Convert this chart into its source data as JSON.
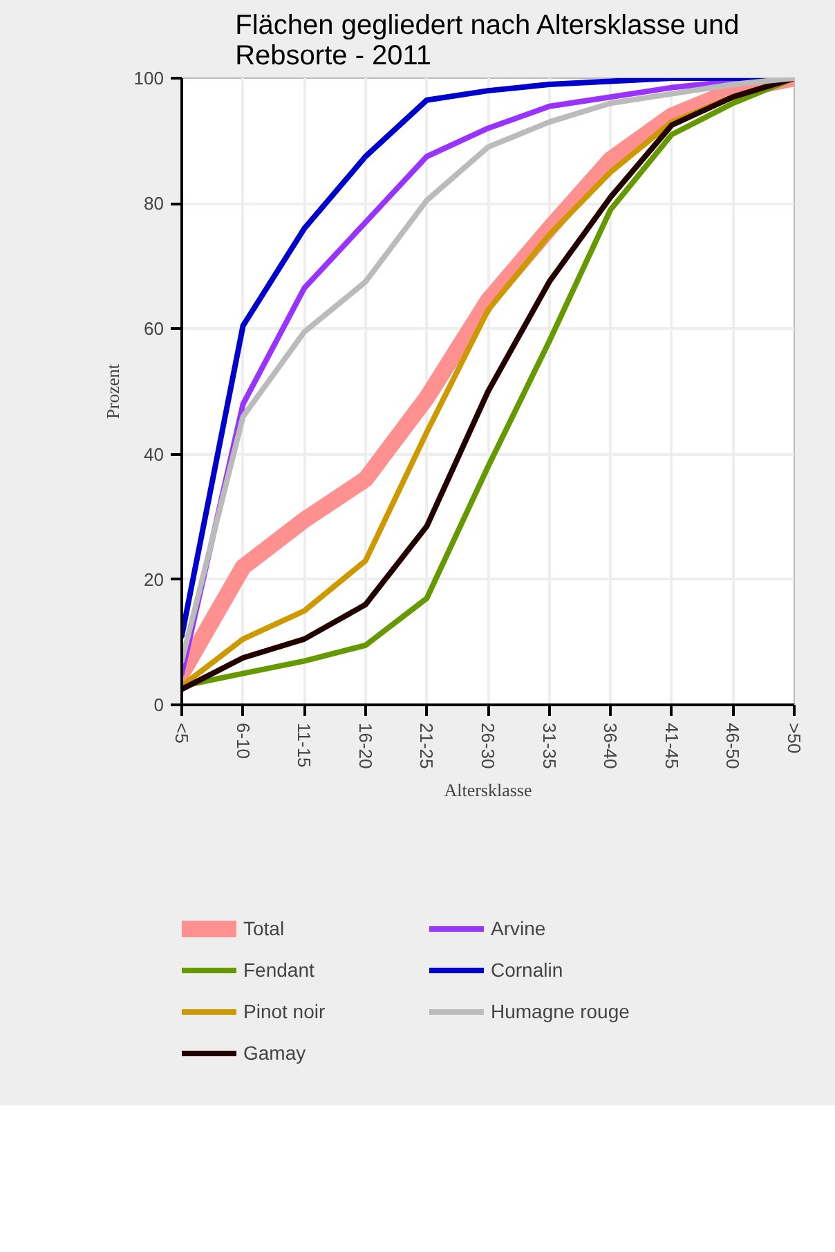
{
  "chart_data": {
    "type": "line",
    "title": "Flächen gegliedert nach Altersklasse und\nRebsorte - 2011",
    "xlabel": "Altersklasse",
    "ylabel": "Prozent",
    "categories": [
      "<5",
      "6-10",
      "11-15",
      "16-20",
      "21-25",
      "26-30",
      "31-35",
      "36-40",
      "41-45",
      "46-50",
      ">50"
    ],
    "ylim": [
      0,
      100
    ],
    "yticks": [
      0,
      20,
      40,
      60,
      80,
      100
    ],
    "grid": true,
    "legend": "bottom",
    "line_style": "solid",
    "marker": "none",
    "series": [
      {
        "name": "Total",
        "color": "#ff9090",
        "values": [
          5,
          22,
          29.5,
          36,
          49,
          64.5,
          76,
          87,
          94,
          98,
          100
        ]
      },
      {
        "name": "Fendant",
        "color": "#669900",
        "values": [
          3,
          5,
          7,
          9.5,
          17,
          38,
          58,
          79,
          91,
          96,
          100
        ]
      },
      {
        "name": "Pinot noir",
        "color": "#cc9900",
        "values": [
          3,
          10.5,
          15,
          23,
          43.5,
          63,
          75,
          85,
          93,
          97,
          100
        ]
      },
      {
        "name": "Gamay",
        "color": "#220000",
        "values": [
          2.5,
          7.5,
          10.5,
          16,
          28.5,
          50,
          67.5,
          81,
          92.5,
          97,
          100
        ]
      },
      {
        "name": "Arvine",
        "color": "#9933ff",
        "values": [
          5,
          48,
          66.5,
          77,
          87.5,
          92,
          95.5,
          97,
          98.5,
          99.5,
          100
        ]
      },
      {
        "name": "Cornalin",
        "color": "#0000cc",
        "values": [
          11,
          60.5,
          76,
          87.5,
          96.5,
          98,
          99,
          99.5,
          100,
          100,
          100
        ]
      },
      {
        "name": "Humagne rouge",
        "color": "#bbbbbb",
        "values": [
          7,
          46,
          59.5,
          67.5,
          80.5,
          89,
          93,
          96,
          97.5,
          99,
          100
        ]
      }
    ]
  }
}
